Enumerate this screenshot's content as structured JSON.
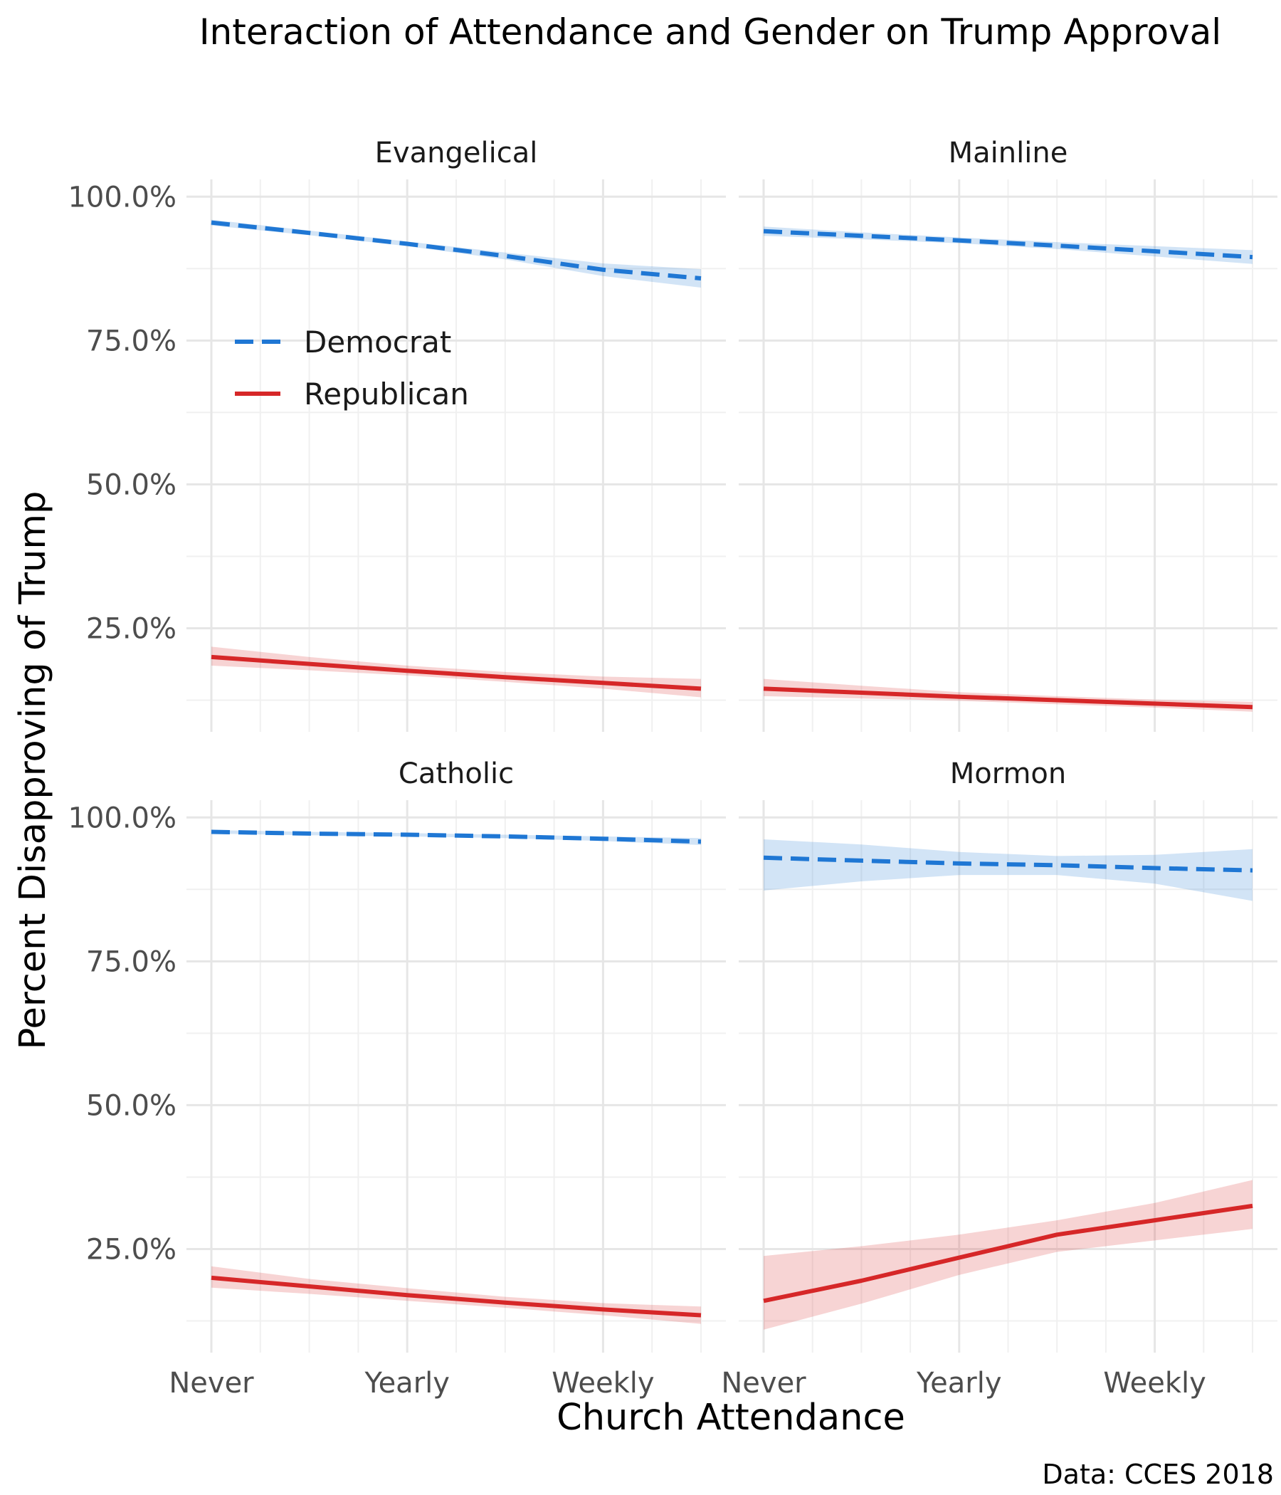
{
  "chart_data": {
    "type": "line",
    "title": "Interaction of Attendance and Gender on Trump Approval",
    "xlabel": "Church Attendance",
    "ylabel": "Percent Disapproving of Trump",
    "caption": "Data: CCES 2018",
    "x_tick_labels": [
      "Never",
      "Yearly",
      "Weekly"
    ],
    "x_tick_values": [
      1,
      3,
      5
    ],
    "xlim": [
      1,
      6
    ],
    "y_tick_labels": [
      "25.0%",
      "50.0%",
      "75.0%",
      "100.0%"
    ],
    "y_tick_values": [
      25,
      50,
      75,
      100
    ],
    "ylim": [
      7,
      103
    ],
    "grid": true,
    "legend": {
      "placement": "inside-top-left",
      "entries": [
        {
          "name": "Democrat",
          "color": "#1f77d4",
          "linetype": "dashed"
        },
        {
          "name": "Republican",
          "color": "#d62728",
          "linetype": "solid"
        }
      ]
    },
    "panels": [
      {
        "name": "Evangelical",
        "series": [
          {
            "name": "Democrat",
            "x": [
              1,
              2,
              3,
              4,
              5,
              6
            ],
            "values": [
              95.5,
              93.7,
              91.8,
              89.7,
              87.3,
              85.8
            ],
            "lower": [
              95.0,
              93.3,
              91.4,
              89.1,
              86.2,
              84.2
            ],
            "upper": [
              96.0,
              94.1,
              92.2,
              90.3,
              88.4,
              87.4
            ]
          },
          {
            "name": "Republican",
            "x": [
              1,
              2,
              3,
              4,
              5,
              6
            ],
            "values": [
              20.0,
              18.8,
              17.6,
              16.5,
              15.5,
              14.5
            ],
            "lower": [
              18.5,
              17.7,
              16.8,
              15.7,
              14.5,
              13.0
            ],
            "upper": [
              21.8,
              20.0,
              18.5,
              17.4,
              16.6,
              16.2
            ]
          }
        ]
      },
      {
        "name": "Mainline",
        "series": [
          {
            "name": "Democrat",
            "x": [
              1,
              2,
              3,
              4,
              5,
              6
            ],
            "values": [
              94.0,
              93.2,
              92.4,
              91.5,
              90.5,
              89.5
            ],
            "lower": [
              93.2,
              92.6,
              91.9,
              90.9,
              89.6,
              88.3
            ],
            "upper": [
              94.8,
              93.8,
              92.9,
              92.1,
              91.4,
              90.7
            ]
          },
          {
            "name": "Republican",
            "x": [
              1,
              2,
              3,
              4,
              5,
              6
            ],
            "values": [
              14.5,
              13.8,
              13.1,
              12.5,
              11.9,
              11.3
            ],
            "lower": [
              13.2,
              12.8,
              12.4,
              11.8,
              11.2,
              10.5
            ],
            "upper": [
              16.2,
              15.0,
              13.9,
              13.2,
              12.6,
              12.2
            ]
          }
        ]
      },
      {
        "name": "Catholic",
        "series": [
          {
            "name": "Democrat",
            "x": [
              1,
              2,
              3,
              4,
              5,
              6
            ],
            "values": [
              97.5,
              97.2,
              97.0,
              96.7,
              96.3,
              95.8
            ],
            "lower": [
              97.2,
              96.9,
              96.7,
              96.4,
              95.9,
              95.2
            ],
            "upper": [
              97.8,
              97.5,
              97.3,
              97.0,
              96.7,
              96.4
            ]
          },
          {
            "name": "Republican",
            "x": [
              1,
              2,
              3,
              4,
              5,
              6
            ],
            "values": [
              20.0,
              18.5,
              17.0,
              15.7,
              14.5,
              13.5
            ],
            "lower": [
              18.3,
              17.2,
              16.0,
              14.8,
              13.5,
              12.0
            ],
            "upper": [
              22.0,
              19.8,
              18.2,
              16.7,
              15.6,
              15.0
            ]
          }
        ]
      },
      {
        "name": "Mormon",
        "series": [
          {
            "name": "Democrat",
            "x": [
              1,
              2,
              3,
              4,
              5,
              6
            ],
            "values": [
              93.0,
              92.5,
              92.0,
              91.7,
              91.2,
              90.8
            ],
            "lower": [
              87.3,
              88.9,
              90.0,
              90.0,
              88.5,
              85.5
            ],
            "upper": [
              96.2,
              95.3,
              94.0,
              93.3,
              93.5,
              94.5
            ]
          },
          {
            "name": "Republican",
            "x": [
              1,
              2,
              3,
              4,
              5,
              6
            ],
            "values": [
              16.0,
              19.5,
              23.5,
              27.5,
              30.0,
              32.5
            ],
            "lower": [
              11.0,
              15.5,
              20.5,
              24.5,
              26.5,
              28.5
            ],
            "upper": [
              23.8,
              25.5,
              27.5,
              30.0,
              33.0,
              37.0
            ]
          }
        ]
      }
    ]
  }
}
